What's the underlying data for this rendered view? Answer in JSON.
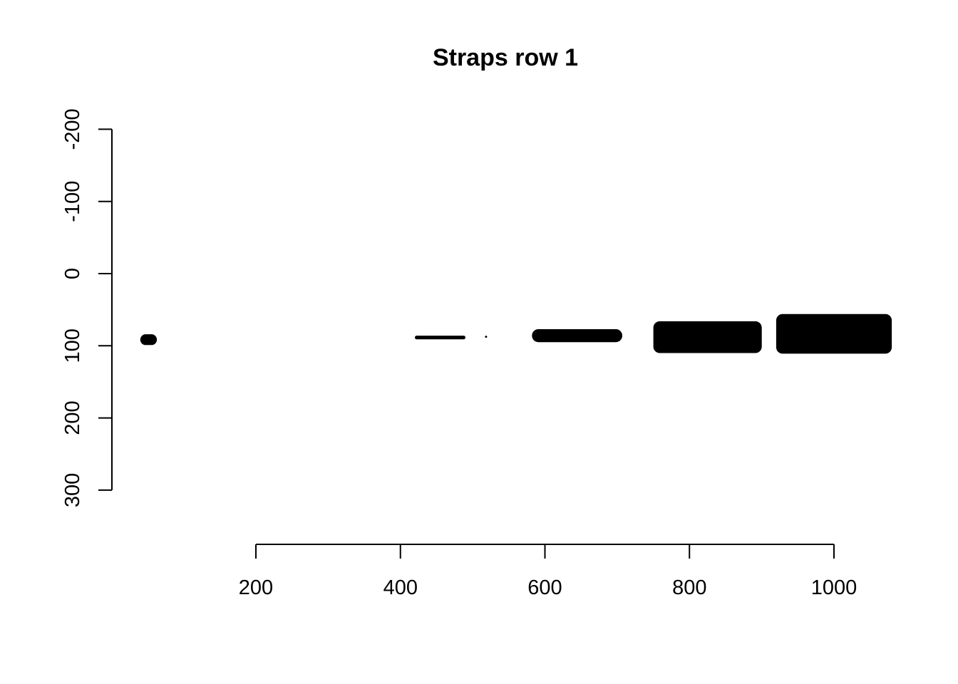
{
  "chart_data": {
    "type": "heatmap",
    "title": "Straps row 1",
    "xlabel": "",
    "ylabel": "",
    "xlim": [
      100,
      1100
    ],
    "ylim": [
      -250,
      350
    ],
    "y_reversed": true,
    "grid": false,
    "x_ticks": [
      200,
      400,
      600,
      800,
      1000
    ],
    "x_tick_labels": [
      "200",
      "400",
      "600",
      "800",
      "1000"
    ],
    "y_ticks": [
      -200,
      -100,
      0,
      100,
      200,
      300
    ],
    "y_tick_labels": [
      "-200",
      "-100",
      "0",
      "100",
      "200",
      "300"
    ],
    "color": "#000000",
    "bands": [
      {
        "x0": 40,
        "x1": 63,
        "y0": 84,
        "y1": 99
      },
      {
        "x0": 420,
        "x1": 490,
        "y0": 86,
        "y1": 91
      },
      {
        "x0": 517,
        "x1": 520,
        "y0": 86,
        "y1": 89
      },
      {
        "x0": 582,
        "x1": 707,
        "y0": 77,
        "y1": 95
      },
      {
        "x0": 750,
        "x1": 900,
        "y0": 66,
        "y1": 110
      },
      {
        "x0": 920,
        "x1": 1080,
        "y0": 56,
        "y1": 111
      }
    ]
  }
}
